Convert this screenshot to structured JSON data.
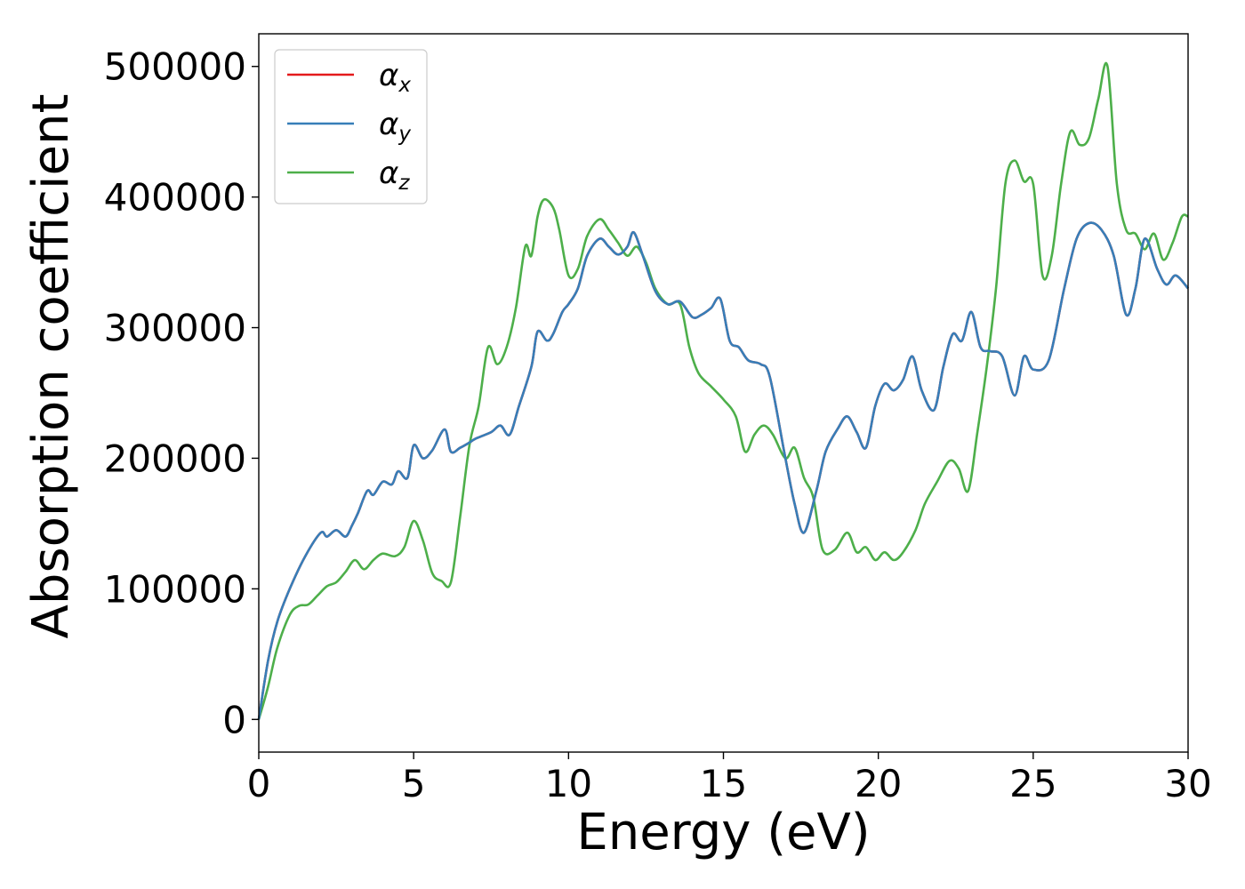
{
  "chart_data": {
    "type": "line",
    "title": "",
    "xlabel": "Energy (eV)",
    "ylabel": "Absorption coefficient",
    "xlim": [
      0,
      30
    ],
    "ylim": [
      -25000,
      525000
    ],
    "xticks": [
      0,
      5,
      10,
      15,
      20,
      25,
      30
    ],
    "yticks": [
      0,
      100000,
      200000,
      300000,
      400000,
      500000
    ],
    "grid": false,
    "legend_position": "top-left",
    "series": [
      {
        "name": "x",
        "legend_symbol": "α",
        "color": "#e41a1c",
        "x": [
          0,
          0.3,
          0.6,
          1.0,
          1.5,
          2.0,
          2.2,
          2.5,
          2.8,
          3.0,
          3.2,
          3.5,
          3.7,
          4.0,
          4.3,
          4.5,
          4.8,
          5.0,
          5.3,
          5.6,
          6.0,
          6.2,
          6.5,
          6.8,
          7.0,
          7.5,
          7.8,
          8.1,
          8.4,
          8.8,
          9.0,
          9.3,
          9.5,
          9.8,
          10.0,
          10.3,
          10.6,
          11.0,
          11.3,
          11.6,
          11.9,
          12.1,
          12.4,
          12.8,
          13.2,
          13.6,
          14.0,
          14.3,
          14.6,
          14.9,
          15.2,
          15.5,
          15.8,
          16.2,
          16.5,
          17.0,
          17.3,
          17.6,
          18.0,
          18.3,
          18.7,
          19.0,
          19.3,
          19.6,
          19.9,
          20.2,
          20.5,
          20.8,
          21.1,
          21.4,
          21.8,
          22.1,
          22.4,
          22.7,
          23.0,
          23.3,
          23.6,
          24.0,
          24.4,
          24.7,
          25.0,
          25.5,
          26.0,
          26.4,
          26.8,
          27.2,
          27.6,
          28.0,
          28.3,
          28.6,
          29.0,
          29.3,
          29.6,
          30.0
        ],
        "y": [
          0,
          45000,
          75000,
          100000,
          125000,
          143000,
          140000,
          145000,
          140000,
          148000,
          158000,
          175000,
          172000,
          182000,
          180000,
          190000,
          185000,
          210000,
          200000,
          206000,
          222000,
          205000,
          208000,
          212000,
          215000,
          220000,
          225000,
          218000,
          240000,
          270000,
          297000,
          290000,
          295000,
          312000,
          318000,
          330000,
          355000,
          368000,
          362000,
          356000,
          362000,
          373000,
          355000,
          328000,
          318000,
          320000,
          308000,
          310000,
          315000,
          322000,
          290000,
          285000,
          275000,
          272000,
          262000,
          200000,
          165000,
          143000,
          175000,
          205000,
          223000,
          232000,
          220000,
          208000,
          240000,
          257000,
          252000,
          260000,
          278000,
          252000,
          237000,
          270000,
          295000,
          290000,
          312000,
          285000,
          282000,
          278000,
          248000,
          278000,
          268000,
          275000,
          330000,
          368000,
          380000,
          375000,
          355000,
          310000,
          330000,
          368000,
          345000,
          333000,
          340000,
          330000
        ]
      },
      {
        "name": "y",
        "legend_symbol": "α",
        "color": "#377eb8",
        "x": [
          0,
          0.3,
          0.6,
          1.0,
          1.5,
          2.0,
          2.2,
          2.5,
          2.8,
          3.0,
          3.2,
          3.5,
          3.7,
          4.0,
          4.3,
          4.5,
          4.8,
          5.0,
          5.3,
          5.6,
          6.0,
          6.2,
          6.5,
          6.8,
          7.0,
          7.5,
          7.8,
          8.1,
          8.4,
          8.8,
          9.0,
          9.3,
          9.5,
          9.8,
          10.0,
          10.3,
          10.6,
          11.0,
          11.3,
          11.6,
          11.9,
          12.1,
          12.4,
          12.8,
          13.2,
          13.6,
          14.0,
          14.3,
          14.6,
          14.9,
          15.2,
          15.5,
          15.8,
          16.2,
          16.5,
          17.0,
          17.3,
          17.6,
          18.0,
          18.3,
          18.7,
          19.0,
          19.3,
          19.6,
          19.9,
          20.2,
          20.5,
          20.8,
          21.1,
          21.4,
          21.8,
          22.1,
          22.4,
          22.7,
          23.0,
          23.3,
          23.6,
          24.0,
          24.4,
          24.7,
          25.0,
          25.5,
          26.0,
          26.4,
          26.8,
          27.2,
          27.6,
          28.0,
          28.3,
          28.6,
          29.0,
          29.3,
          29.6,
          30.0
        ],
        "y": [
          0,
          45000,
          75000,
          100000,
          125000,
          143000,
          140000,
          145000,
          140000,
          148000,
          158000,
          175000,
          172000,
          182000,
          180000,
          190000,
          185000,
          210000,
          200000,
          206000,
          222000,
          205000,
          208000,
          212000,
          215000,
          220000,
          225000,
          218000,
          240000,
          270000,
          297000,
          290000,
          295000,
          312000,
          318000,
          330000,
          355000,
          368000,
          362000,
          356000,
          362000,
          373000,
          355000,
          328000,
          318000,
          320000,
          308000,
          310000,
          315000,
          322000,
          290000,
          285000,
          275000,
          272000,
          262000,
          200000,
          165000,
          143000,
          175000,
          205000,
          223000,
          232000,
          220000,
          208000,
          240000,
          257000,
          252000,
          260000,
          278000,
          252000,
          237000,
          270000,
          295000,
          290000,
          312000,
          285000,
          282000,
          278000,
          248000,
          278000,
          268000,
          275000,
          330000,
          368000,
          380000,
          375000,
          355000,
          310000,
          330000,
          368000,
          345000,
          333000,
          340000,
          330000
        ]
      },
      {
        "name": "z",
        "legend_symbol": "α",
        "color": "#4daf4a",
        "x": [
          0,
          0.3,
          0.6,
          1.0,
          1.3,
          1.6,
          1.9,
          2.2,
          2.5,
          2.8,
          3.1,
          3.4,
          3.7,
          4.0,
          4.4,
          4.7,
          5.0,
          5.3,
          5.6,
          5.9,
          6.2,
          6.5,
          6.8,
          7.1,
          7.4,
          7.7,
          8.0,
          8.3,
          8.6,
          8.8,
          9.0,
          9.2,
          9.5,
          9.7,
          10.0,
          10.3,
          10.6,
          11.0,
          11.3,
          11.6,
          11.9,
          12.2,
          12.5,
          12.8,
          13.2,
          13.6,
          13.9,
          14.2,
          14.6,
          15.0,
          15.4,
          15.7,
          16.0,
          16.3,
          16.6,
          17.0,
          17.3,
          17.6,
          17.9,
          18.2,
          18.6,
          19.0,
          19.3,
          19.6,
          19.9,
          20.2,
          20.5,
          20.8,
          21.2,
          21.5,
          21.9,
          22.3,
          22.6,
          22.9,
          23.2,
          23.5,
          23.8,
          24.1,
          24.4,
          24.7,
          25.0,
          25.3,
          25.6,
          25.9,
          26.2,
          26.5,
          26.8,
          27.1,
          27.4,
          27.7,
          28.0,
          28.3,
          28.6,
          28.9,
          29.2,
          29.5,
          29.8,
          30.0
        ],
        "y": [
          0,
          25000,
          55000,
          80000,
          87000,
          88000,
          95000,
          102000,
          105000,
          113000,
          122000,
          115000,
          122000,
          127000,
          125000,
          132000,
          152000,
          137000,
          112000,
          106000,
          105000,
          155000,
          210000,
          240000,
          285000,
          272000,
          285000,
          315000,
          362000,
          355000,
          385000,
          398000,
          392000,
          375000,
          340000,
          345000,
          370000,
          383000,
          375000,
          365000,
          355000,
          362000,
          350000,
          330000,
          318000,
          318000,
          285000,
          265000,
          255000,
          245000,
          232000,
          205000,
          218000,
          225000,
          218000,
          200000,
          208000,
          185000,
          170000,
          130000,
          130000,
          143000,
          128000,
          132000,
          122000,
          128000,
          122000,
          128000,
          145000,
          165000,
          182000,
          198000,
          192000,
          175000,
          220000,
          270000,
          330000,
          410000,
          428000,
          412000,
          410000,
          340000,
          355000,
          410000,
          450000,
          440000,
          445000,
          475000,
          500000,
          410000,
          375000,
          372000,
          360000,
          372000,
          352000,
          365000,
          385000,
          385000
        ]
      }
    ]
  }
}
